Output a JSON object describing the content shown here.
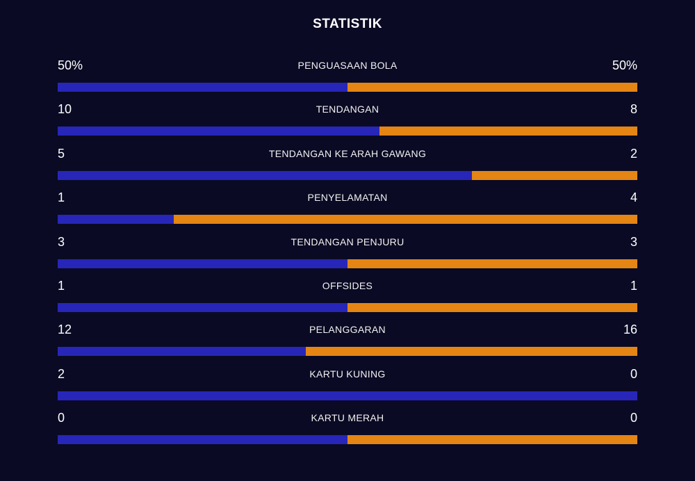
{
  "title": "STATISTIK",
  "colors": {
    "background": "#0a0a24",
    "home": "#2726b8",
    "away": "#e48514"
  },
  "stats": [
    {
      "label": "PENGUASAAN BOLA",
      "home": "50%",
      "away": "50%",
      "home_value": 50,
      "away_value": 50
    },
    {
      "label": "TENDANGAN",
      "home": "10",
      "away": "8",
      "home_value": 10,
      "away_value": 8
    },
    {
      "label": "TENDANGAN KE ARAH GAWANG",
      "home": "5",
      "away": "2",
      "home_value": 5,
      "away_value": 2
    },
    {
      "label": "PENYELAMATAN",
      "home": "1",
      "away": "4",
      "home_value": 1,
      "away_value": 4
    },
    {
      "label": "TENDANGAN PENJURU",
      "home": "3",
      "away": "3",
      "home_value": 3,
      "away_value": 3
    },
    {
      "label": "OFFSIDES",
      "home": "1",
      "away": "1",
      "home_value": 1,
      "away_value": 1
    },
    {
      "label": "PELANGGARAN",
      "home": "12",
      "away": "16",
      "home_value": 12,
      "away_value": 16
    },
    {
      "label": "KARTU KUNING",
      "home": "2",
      "away": "0",
      "home_value": 2,
      "away_value": 0
    },
    {
      "label": "KARTU MERAH",
      "home": "0",
      "away": "0",
      "home_value": 0,
      "away_value": 0
    }
  ]
}
